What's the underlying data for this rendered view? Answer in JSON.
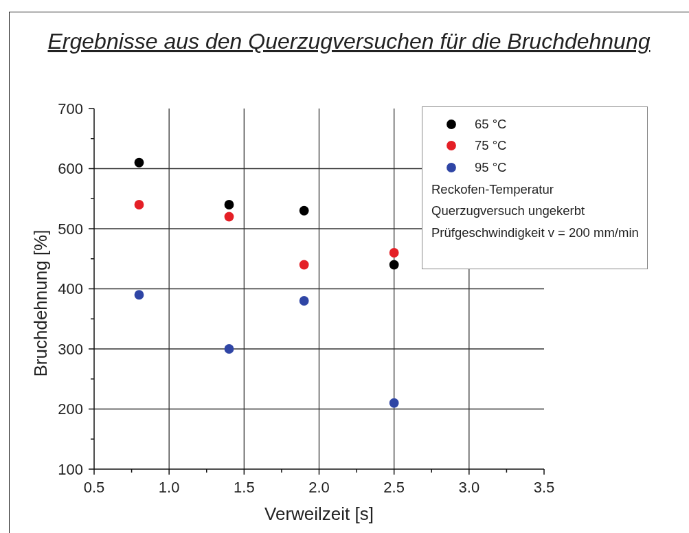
{
  "chart_data": {
    "type": "scatter",
    "title": "Ergebnisse aus den Querzugversuchen für die Bruchdehnung",
    "xlabel": "Verweilzeit [s]",
    "ylabel": "Bruchdehnung [%]",
    "x": [
      0.8,
      1.4,
      1.9,
      2.5
    ],
    "series": [
      {
        "name": "65 °C",
        "color": "#000000",
        "values": [
          610,
          540,
          530,
          440
        ]
      },
      {
        "name": "75 °C",
        "color": "#e41f26",
        "values": [
          540,
          520,
          440,
          460
        ]
      },
      {
        "name": "95 °C",
        "color": "#2f45a5",
        "values": [
          390,
          300,
          380,
          210
        ]
      }
    ],
    "xlim": [
      0.5,
      3.5
    ],
    "xticks": [
      0.5,
      {
        "value": 0.75,
        "label": null
      },
      {
        "value": 1,
        "label": "1.0"
      },
      {
        "value": 1.25,
        "label": null
      },
      1.5,
      {
        "value": 1.75,
        "label": null
      },
      {
        "value": 2,
        "label": "2.0"
      },
      {
        "value": 2.25,
        "label": null
      },
      2.5,
      {
        "value": 2.75,
        "label": null
      },
      {
        "value": 3,
        "label": "3.0"
      },
      {
        "value": 3.25,
        "label": null
      },
      3.5
    ],
    "ylim": [
      100,
      700
    ],
    "yticks": [
      100,
      {
        "value": 150,
        "label": null
      },
      200,
      {
        "value": 250,
        "label": null
      },
      300,
      {
        "value": 350,
        "label": null
      },
      400,
      {
        "value": 450,
        "label": null
      },
      500,
      {
        "value": 550,
        "label": null
      },
      600,
      {
        "value": 650,
        "label": null
      },
      700
    ],
    "grid": true,
    "legend": "top right",
    "marker": "circle",
    "annotations": [
      "Reckofen-Temperatur",
      "Querzugversuch ungekerbt",
      "Prüfgeschwindigkeit v = 200 mm/min"
    ]
  }
}
